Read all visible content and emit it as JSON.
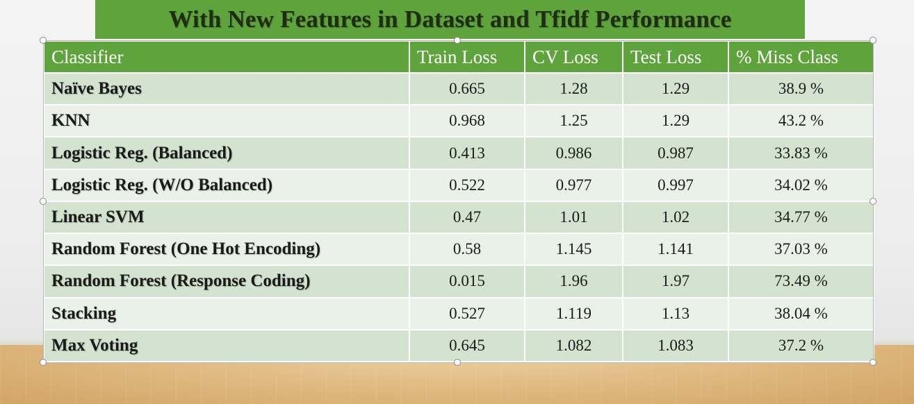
{
  "slide": {
    "title": "With New Features in Dataset and Tfidf Performance"
  },
  "table": {
    "headers": [
      "Classifier",
      "Train Loss",
      "CV Loss",
      "Test Loss",
      "% Miss Class"
    ],
    "rows": [
      [
        "Naïve Bayes",
        "0.665",
        "1.28",
        "1.29",
        "38.9 %"
      ],
      [
        "KNN",
        "0.968",
        "1.25",
        "1.29",
        "43.2 %"
      ],
      [
        "Logistic Reg. (Balanced)",
        "0.413",
        "0.986",
        "0.987",
        "33.83 %"
      ],
      [
        "Logistic Reg. (W/O Balanced)",
        "0.522",
        "0.977",
        "0.997",
        "34.02 %"
      ],
      [
        "Linear SVM",
        "0.47",
        "1.01",
        "1.02",
        "34.77 %"
      ],
      [
        "Random Forest (One Hot Encoding)",
        "0.58",
        "1.145",
        "1.141",
        "37.03 %"
      ],
      [
        "Random Forest (Response Coding)",
        "0.015",
        "1.96",
        "1.97",
        "73.49 %"
      ],
      [
        "Stacking",
        "0.527",
        "1.119",
        "1.13",
        "38.04 %"
      ],
      [
        "Max Voting",
        "0.645",
        "1.082",
        "1.083",
        "37.2 %"
      ]
    ]
  },
  "colors": {
    "header_green": "#5ea33b",
    "row_dark": "#d3e3cf",
    "row_light": "#eaf1e8"
  }
}
